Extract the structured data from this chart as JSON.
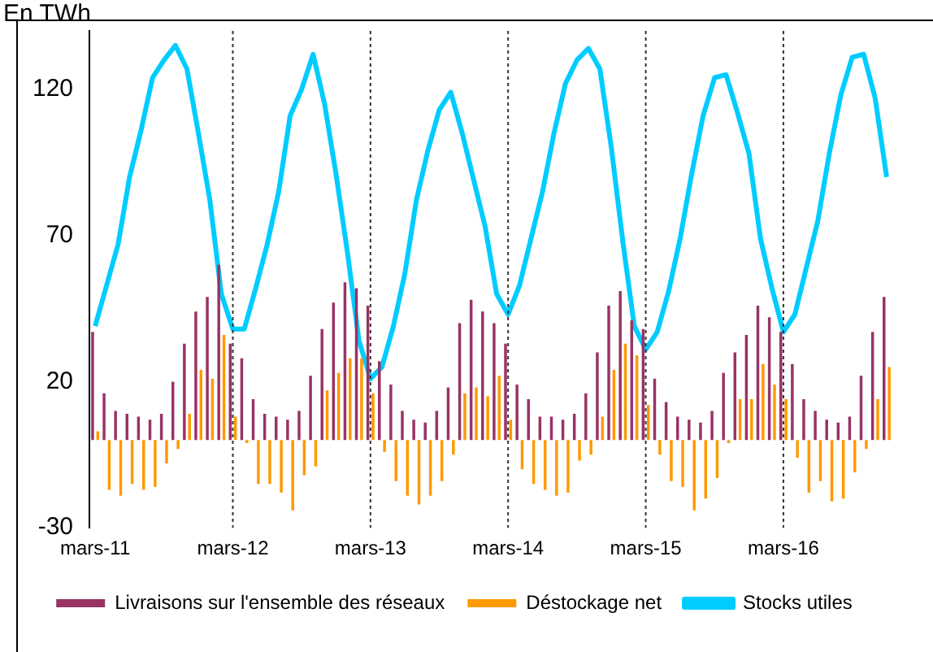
{
  "chart_data": {
    "type": "bar",
    "ylabel": "En TWh",
    "categories": [
      "mars-11",
      null,
      null,
      null,
      null,
      null,
      null,
      null,
      null,
      null,
      null,
      null,
      "mars-12",
      null,
      null,
      null,
      null,
      null,
      null,
      null,
      null,
      null,
      null,
      null,
      "mars-13",
      null,
      null,
      null,
      null,
      null,
      null,
      null,
      null,
      null,
      null,
      null,
      "mars-14",
      null,
      null,
      null,
      null,
      null,
      null,
      null,
      null,
      null,
      null,
      null,
      "mars-15",
      null,
      null,
      null,
      null,
      null,
      null,
      null,
      null,
      null,
      null,
      null,
      "mars-16",
      null,
      null,
      null,
      null,
      null,
      null,
      null,
      null,
      null
    ],
    "series": [
      {
        "name": "Livraisons sur l'ensemble des réseaux",
        "color": "#993366",
        "values": [
          37,
          16,
          10,
          9,
          8,
          7,
          9,
          20,
          33,
          44,
          49,
          60,
          33,
          28,
          14,
          9,
          8,
          7,
          10,
          22,
          38,
          47,
          54,
          52,
          46,
          27,
          19,
          10,
          7,
          6,
          10,
          18,
          40,
          48,
          44,
          40,
          33,
          19,
          14,
          8,
          8,
          7,
          9,
          16,
          30,
          46,
          51,
          41,
          38,
          21,
          13,
          8,
          7,
          6,
          10,
          23,
          30,
          36,
          46,
          42,
          37,
          26,
          14,
          10,
          7,
          6,
          8,
          22,
          37,
          49
        ]
      },
      {
        "name": "Déstockage net",
        "color": "#ff9900",
        "values": [
          3,
          -17,
          -19,
          -15,
          -17,
          -16,
          -8,
          -3,
          9,
          24,
          21,
          36,
          8,
          -1,
          -15,
          -15,
          -18,
          -24,
          -12,
          -9,
          17,
          23,
          28,
          28,
          16,
          -4,
          -14,
          -19,
          -22,
          -19,
          -14,
          -5,
          16,
          18,
          15,
          22,
          7,
          -10,
          -15,
          -17,
          -19,
          -18,
          -7,
          -5,
          8,
          24,
          33,
          29,
          12,
          -5,
          -14,
          -16,
          -24,
          -20,
          -13,
          -1,
          14,
          14,
          26,
          19,
          14,
          -6,
          -18,
          -14,
          -21,
          -20,
          -11,
          -3,
          14,
          25
        ]
      },
      {
        "name": "Stocks utiles",
        "type": "line",
        "color": "#00ccff",
        "values": [
          39,
          53,
          67,
          90,
          106,
          124,
          130,
          135,
          127,
          105,
          82,
          50,
          38,
          38,
          52,
          67,
          85,
          111,
          120,
          132,
          115,
          91,
          64,
          34,
          21,
          25,
          39,
          57,
          82,
          99,
          113,
          119,
          105,
          89,
          73,
          50,
          43,
          53,
          69,
          85,
          105,
          122,
          130,
          134,
          127,
          100,
          68,
          39,
          31,
          37,
          51,
          69,
          91,
          111,
          124,
          125,
          112,
          98,
          69,
          52,
          37,
          43,
          59,
          75,
          98,
          118,
          131,
          132,
          117,
          90
        ]
      }
    ],
    "ylim": [
      -30,
      140
    ],
    "yticks": [
      -30,
      20,
      70,
      120
    ],
    "grid": false,
    "legend": "bottom",
    "marker": "none",
    "ref_lines": [
      {
        "axis": "x",
        "value": "mars-12",
        "line_style": "dotted"
      },
      {
        "axis": "x",
        "value": "mars-13",
        "line_style": "dotted"
      },
      {
        "axis": "x",
        "value": "mars-14",
        "line_style": "dotted"
      },
      {
        "axis": "x",
        "value": "mars-15",
        "line_style": "dotted"
      },
      {
        "axis": "x",
        "value": "mars-16",
        "line_style": "dotted"
      }
    ]
  }
}
